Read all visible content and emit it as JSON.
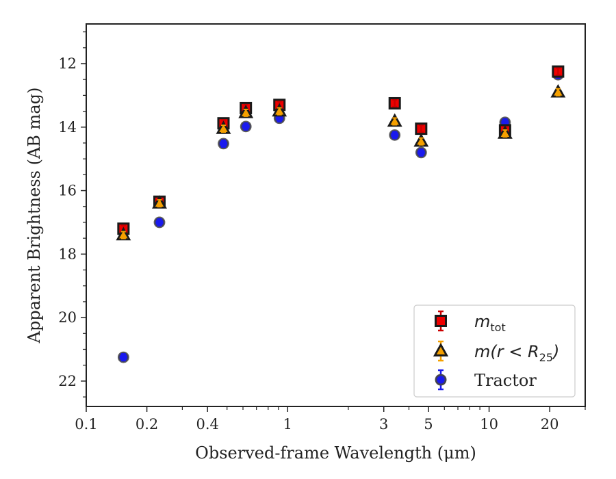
{
  "chart_data": {
    "type": "scatter",
    "xlabel": "Observed-frame Wavelength (μm)",
    "ylabel": "Apparent Brightness (AB mag)",
    "x_scale": "log",
    "xlim": [
      0.1,
      30
    ],
    "ylim": [
      22.8,
      10.75
    ],
    "y_inverted": true,
    "xticks": [
      {
        "value": 0.1,
        "label": "0.1"
      },
      {
        "value": 0.2,
        "label": "0.2"
      },
      {
        "value": 0.4,
        "label": "0.4"
      },
      {
        "value": 1,
        "label": "1"
      },
      {
        "value": 3,
        "label": "3"
      },
      {
        "value": 5,
        "label": "5"
      },
      {
        "value": 10,
        "label": "10"
      },
      {
        "value": 20,
        "label": "20"
      }
    ],
    "yticks": [
      {
        "value": 12,
        "label": "12"
      },
      {
        "value": 14,
        "label": "14"
      },
      {
        "value": 16,
        "label": "16"
      },
      {
        "value": 18,
        "label": "18"
      },
      {
        "value": 20,
        "label": "20"
      },
      {
        "value": 22,
        "label": "22"
      }
    ],
    "grid": false,
    "legend_position": "lower-right",
    "series": [
      {
        "name": "m_tot",
        "legend_main": "m",
        "legend_sub": "tot",
        "marker": "square",
        "face_color": "#ee0000",
        "error_color": "#cc0000",
        "x": [
          0.153,
          0.231,
          0.48,
          0.62,
          0.91,
          3.4,
          4.6,
          12.0,
          22.0
        ],
        "y": [
          17.2,
          16.35,
          13.88,
          13.4,
          13.3,
          13.25,
          14.05,
          14.1,
          12.25
        ]
      },
      {
        "name": "m(r < R_25)",
        "legend_main": "m(r < R",
        "legend_sub": "25",
        "legend_tail": ")",
        "marker": "triangle",
        "face_color": "#f5a000",
        "error_color": "#f5a000",
        "x": [
          0.153,
          0.231,
          0.48,
          0.62,
          0.91,
          3.4,
          4.6,
          12.0,
          22.0
        ],
        "y": [
          17.4,
          16.4,
          14.05,
          13.55,
          13.5,
          13.82,
          14.45,
          14.2,
          12.9
        ]
      },
      {
        "name": "Tractor",
        "legend_main": "Tractor",
        "marker": "circle",
        "face_color": "#1a1aee",
        "error_color": "#1a1aee",
        "x": [
          0.153,
          0.231,
          0.48,
          0.62,
          0.91,
          3.4,
          4.6,
          12.0,
          22.0
        ],
        "y": [
          21.25,
          17.0,
          14.52,
          13.98,
          13.72,
          14.25,
          14.8,
          13.85,
          12.35
        ]
      }
    ]
  }
}
